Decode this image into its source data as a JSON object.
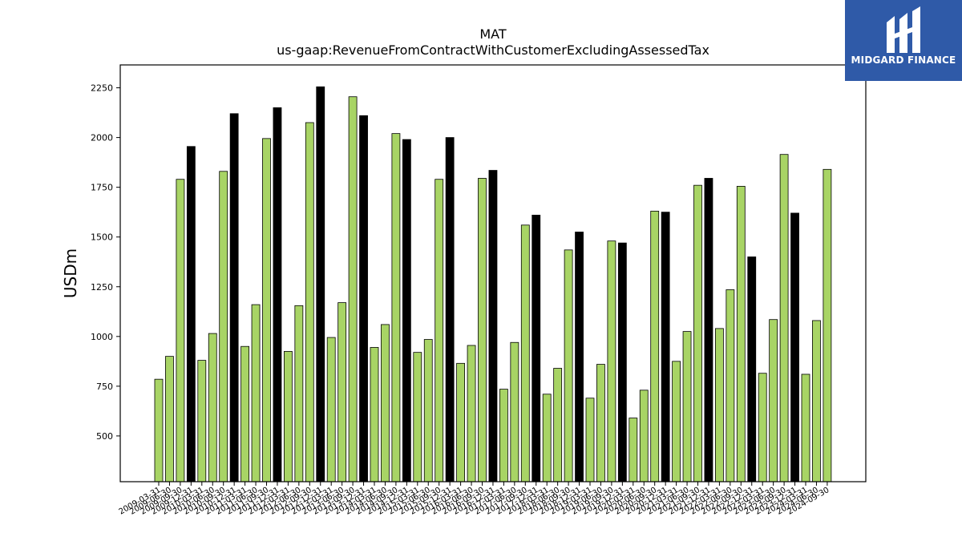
{
  "logo": {
    "text": "MIDGARD FINANCE",
    "mark": "midgard-logo-icon",
    "color": "#2f5aa8"
  },
  "chart_data": {
    "type": "bar",
    "title": "MAT",
    "subtitle": "us-gaap:RevenueFromContractWithCustomerExcludingAssessedTax",
    "xlabel": "",
    "ylabel": "USDm",
    "ylim": [
      270,
      2365
    ],
    "yticks": [
      500,
      750,
      1000,
      1250,
      1500,
      1750,
      2000,
      2250
    ],
    "grid": false,
    "colors": {
      "quarter": "#a8d465",
      "fourth_quarter": "#000000"
    },
    "categories": [
      "2009-03-31",
      "2009-06-30",
      "2009-09-30",
      "2009-12-31",
      "2010-03-31",
      "2010-06-30",
      "2010-09-30",
      "2010-12-31",
      "2011-03-31",
      "2011-06-30",
      "2011-09-30",
      "2011-12-31",
      "2012-03-31",
      "2012-06-30",
      "2012-09-30",
      "2012-12-31",
      "2013-03-31",
      "2013-06-30",
      "2013-09-30",
      "2013-12-31",
      "2014-03-31",
      "2014-06-30",
      "2014-09-30",
      "2014-12-31",
      "2015-03-31",
      "2015-06-30",
      "2015-09-30",
      "2015-12-31",
      "2016-03-31",
      "2016-06-30",
      "2016-09-30",
      "2016-12-31",
      "2017-03-31",
      "2017-06-30",
      "2017-09-30",
      "2017-12-31",
      "2018-03-31",
      "2018-06-30",
      "2018-09-30",
      "2018-12-31",
      "2019-03-31",
      "2019-06-30",
      "2019-09-30",
      "2019-12-31",
      "2020-03-31",
      "2020-06-30",
      "2020-09-30",
      "2020-12-31",
      "2021-03-31",
      "2021-06-30",
      "2021-09-30",
      "2021-12-31",
      "2022-03-31",
      "2022-06-30",
      "2022-09-30",
      "2022-12-31",
      "2023-03-31",
      "2023-06-30",
      "2023-09-30",
      "2023-12-31",
      "2024-03-31",
      "2024-06-30",
      "2024-09-30"
    ],
    "values": [
      785,
      900,
      1790,
      1955,
      880,
      1015,
      1830,
      2120,
      950,
      1160,
      1995,
      2150,
      925,
      1155,
      2075,
      2255,
      995,
      1170,
      2205,
      2110,
      945,
      1060,
      2020,
      1990,
      920,
      985,
      1790,
      2000,
      865,
      955,
      1795,
      1835,
      735,
      970,
      1560,
      1610,
      710,
      840,
      1435,
      1525,
      690,
      860,
      1480,
      1470,
      590,
      730,
      1630,
      1625,
      875,
      1025,
      1760,
      1795,
      1040,
      1235,
      1755,
      1400,
      815,
      1085,
      1915,
      1620,
      810,
      1080,
      1840
    ]
  }
}
